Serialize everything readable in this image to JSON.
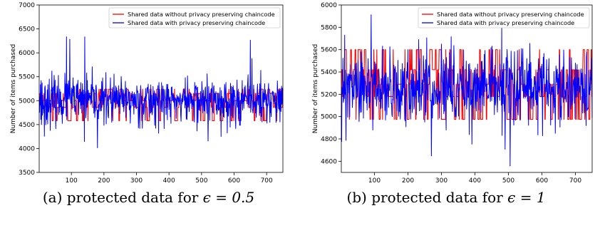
{
  "chart_data": [
    {
      "type": "line",
      "caption_prefix": "(a) protected data for ",
      "caption_math": "ϵ = 0.5",
      "xlabel": "Query transactions",
      "ylabel": "Number of items purchased",
      "xlim": [
        1,
        750
      ],
      "ylim": [
        3500,
        7000
      ],
      "xticks": [
        100,
        200,
        300,
        400,
        500,
        600,
        700
      ],
      "yticks": [
        3500,
        4000,
        4500,
        5000,
        5500,
        6000,
        6500,
        7000
      ],
      "legend_position": "top-right",
      "grid": false,
      "series": [
        {
          "name": "Shared data without privacy preserving chaincode",
          "color": "#ff0000",
          "generated": {
            "seed": 11,
            "levels": [
              4580,
              4860,
              5000,
              5150,
              5240
            ],
            "weights": [
              0.16,
              0.17,
              0.28,
              0.24,
              0.15
            ]
          }
        },
        {
          "name": "Shared data with privacy preserving chaincode",
          "color": "#0000ff",
          "generated": {
            "seed": 23,
            "mean": 5000,
            "sd": 230,
            "spikes": [
              [
                7,
                5420
              ],
              [
                8,
                4500
              ],
              [
                17,
                4260
              ],
              [
                40,
                5620
              ],
              [
                85,
                6330
              ],
              [
                86,
                4600
              ],
              [
                95,
                6280
              ],
              [
                140,
                4150
              ],
              [
                141,
                6330
              ],
              [
                180,
                4020
              ],
              [
                310,
                4420
              ],
              [
                395,
                4600
              ],
              [
                520,
                4160
              ],
              [
                560,
                4250
              ],
              [
                650,
                6260
              ],
              [
                655,
                5880
              ]
            ]
          }
        }
      ],
      "spike_points": [
        [
          85,
          6330
        ],
        [
          141,
          6330
        ],
        [
          95,
          6280
        ],
        [
          650,
          6260
        ],
        [
          180,
          4020
        ],
        [
          140,
          4150
        ],
        [
          520,
          4160
        ],
        [
          17,
          4260
        ]
      ]
    },
    {
      "type": "line",
      "caption_prefix": "(b) protected data for ",
      "caption_math": "ϵ = 1",
      "xlabel": "Query transactions",
      "ylabel": "Number of items purchased",
      "xlim": [
        1,
        750
      ],
      "ylim": [
        4500,
        6000
      ],
      "xticks": [
        100,
        200,
        300,
        400,
        500,
        600,
        700
      ],
      "yticks": [
        4600,
        4800,
        5000,
        5200,
        5400,
        5600,
        5800,
        6000
      ],
      "legend_position": "top-right",
      "grid": false,
      "series": [
        {
          "name": "Shared data without privacy preserving chaincode",
          "color": "#ff0000",
          "generated": {
            "seed": 31,
            "levels": [
              4975,
              5180,
              5290,
              5420,
              5600
            ],
            "weights": [
              0.2,
              0.18,
              0.22,
              0.24,
              0.16
            ]
          }
        },
        {
          "name": "Shared data with privacy preserving chaincode",
          "color": "#0000ff",
          "generated": {
            "seed": 47,
            "mean": 5250,
            "sd": 150,
            "spikes": [
              [
                15,
                4790
              ],
              [
                60,
                5580
              ],
              [
                90,
                5910
              ],
              [
                95,
                4880
              ],
              [
                200,
                5600
              ],
              [
                270,
                4650
              ],
              [
                300,
                5650
              ],
              [
                480,
                5800
              ],
              [
                490,
                4710
              ],
              [
                505,
                4560
              ],
              [
                640,
                4850
              ],
              [
                700,
                5480
              ]
            ]
          }
        }
      ],
      "spike_points": [
        [
          90,
          5910
        ],
        [
          480,
          5800
        ],
        [
          505,
          4560
        ],
        [
          270,
          4650
        ],
        [
          490,
          4710
        ],
        [
          15,
          4790
        ]
      ]
    }
  ]
}
